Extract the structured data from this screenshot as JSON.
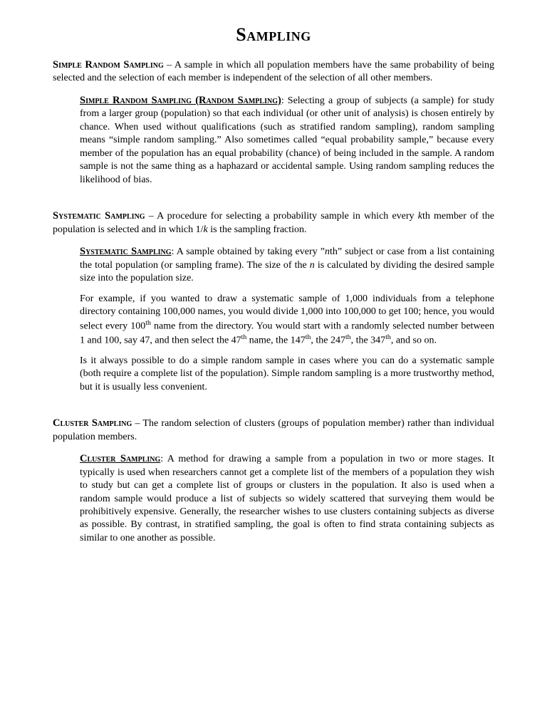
{
  "title": "Sampling",
  "sections": [
    {
      "heading": "Simple Random Sampling",
      "def": " – A sample in which all population members have the same probability of being selected and the selection of each member is independent of the selection of all other members.",
      "sub": {
        "heading": "Simple Random Sampling (Random Sampling)",
        "paras": [
          ": Selecting a group of subjects (a sample) for study from a larger group (population) so that each individual (or other unit of analysis) is chosen entirely by chance. When used without qualifications (such as stratified random sampling), random sampling means “simple random sampling.” Also sometimes called “equal probability sample,” because every member of the population has an equal probability (chance) of being included in the sample. A random sample is not the same thing as a haphazard or accidental sample. Using random sampling reduces the likelihood of bias."
        ]
      }
    },
    {
      "heading": "Systematic Sampling",
      "def_html": " – A procedure for selecting a probability sample in which every <i>k</i>th member of the population is selected and in which 1/<i>k</i> is the sampling fraction.",
      "sub": {
        "heading": "Systematic Sampling",
        "paras_html": [
          ": A sample obtained by taking every ”<i>n</i>th” subject or case from a list containing the total population (or sampling frame). The size of the <i>n</i> is calculated by dividing the desired sample size into the population size.",
          "For example, if you wanted to draw a systematic sample of 1,000 individuals from a telephone directory containing 100,000 names, you would divide 1,000 into 100,000 to get 100; hence, you would select every 100<sup>th</sup> name from the directory. You would start with a randomly selected number between 1 and 100, say 47, and then select the 47<sup>th</sup> name, the 147<sup>th</sup>, the 247<sup>th</sup>, the 347<sup>th</sup>, and so on.",
          "Is it always possible to do a simple random sample in cases where you can do a systematic sample (both require a complete list of the population). Simple random sampling is a more trustworthy method, but it is usually less convenient."
        ]
      }
    },
    {
      "heading": "Cluster Sampling",
      "def": " – The random selection of clusters (groups of population member) rather than individual population members.",
      "sub": {
        "heading": "Cluster Sampling",
        "paras": [
          ": A method for drawing a sample from a population in two or more stages. It typically is used when researchers cannot get a complete list of the members of a population they wish to study but can get a complete list of groups or clusters in the population. It also is used when a random sample would produce a list of subjects so widely scattered that surveying them would be prohibitively expensive. Generally, the researcher wishes to use clusters containing subjects as diverse as possible. By contrast, in stratified sampling, the goal is often to find strata containing subjects as similar to one another as possible."
        ]
      }
    }
  ]
}
